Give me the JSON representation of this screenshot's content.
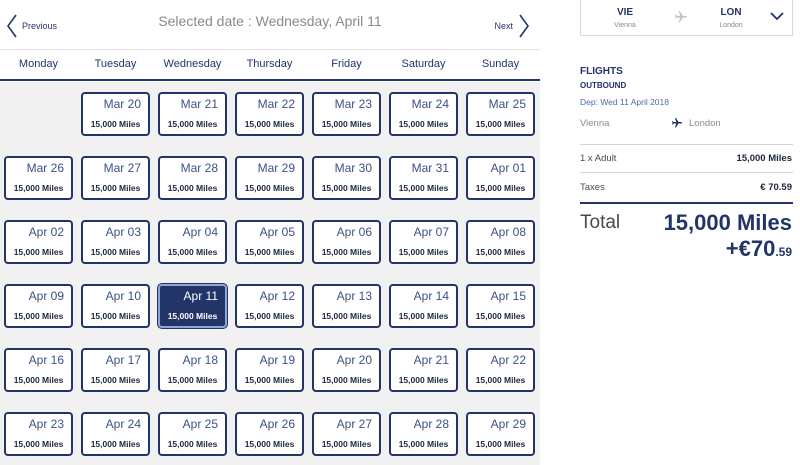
{
  "calendar": {
    "prev_label": "Previous",
    "next_label": "Next",
    "selected_date_text": "Selected date : Wednesday, April 11",
    "weekdays": [
      "Monday",
      "Tuesday",
      "Wednesday",
      "Thursday",
      "Friday",
      "Saturday",
      "Sunday"
    ],
    "selected_date": "Apr 11",
    "rows": [
      [
        null,
        {
          "date": "Mar 20",
          "miles": "15,000 Miles"
        },
        {
          "date": "Mar 21",
          "miles": "15,000 Miles"
        },
        {
          "date": "Mar 22",
          "miles": "15,000 Miles"
        },
        {
          "date": "Mar 23",
          "miles": "15,000 Miles"
        },
        {
          "date": "Mar 24",
          "miles": "15,000 Miles"
        },
        {
          "date": "Mar 25",
          "miles": "15,000 Miles"
        }
      ],
      [
        {
          "date": "Mar 26",
          "miles": "15,000 Miles"
        },
        {
          "date": "Mar 27",
          "miles": "15,000 Miles"
        },
        {
          "date": "Mar 28",
          "miles": "15,000 Miles"
        },
        {
          "date": "Mar 29",
          "miles": "15,000 Miles"
        },
        {
          "date": "Mar 30",
          "miles": "15,000 Miles"
        },
        {
          "date": "Mar 31",
          "miles": "15,000 Miles"
        },
        {
          "date": "Apr 01",
          "miles": "15,000 Miles"
        }
      ],
      [
        {
          "date": "Apr 02",
          "miles": "15,000 Miles"
        },
        {
          "date": "Apr 03",
          "miles": "15,000 Miles"
        },
        {
          "date": "Apr 04",
          "miles": "15,000 Miles"
        },
        {
          "date": "Apr 05",
          "miles": "15,000 Miles"
        },
        {
          "date": "Apr 06",
          "miles": "15,000 Miles"
        },
        {
          "date": "Apr 07",
          "miles": "15,000 Miles"
        },
        {
          "date": "Apr 08",
          "miles": "15,000 Miles"
        }
      ],
      [
        {
          "date": "Apr 09",
          "miles": "15,000 Miles"
        },
        {
          "date": "Apr 10",
          "miles": "15,000 Miles"
        },
        {
          "date": "Apr 11",
          "miles": "15,000 Miles"
        },
        {
          "date": "Apr 12",
          "miles": "15,000 Miles"
        },
        {
          "date": "Apr 13",
          "miles": "15,000 Miles"
        },
        {
          "date": "Apr 14",
          "miles": "15,000 Miles"
        },
        {
          "date": "Apr 15",
          "miles": "15,000 Miles"
        }
      ],
      [
        {
          "date": "Apr 16",
          "miles": "15,000 Miles"
        },
        {
          "date": "Apr 17",
          "miles": "15,000 Miles"
        },
        {
          "date": "Apr 18",
          "miles": "15,000 Miles"
        },
        {
          "date": "Apr 19",
          "miles": "15,000 Miles"
        },
        {
          "date": "Apr 20",
          "miles": "15,000 Miles"
        },
        {
          "date": "Apr 21",
          "miles": "15,000 Miles"
        },
        {
          "date": "Apr 22",
          "miles": "15,000 Miles"
        }
      ],
      [
        {
          "date": "Apr 23",
          "miles": "15,000 Miles"
        },
        {
          "date": "Apr 24",
          "miles": "15,000 Miles"
        },
        {
          "date": "Apr 25",
          "miles": "15,000 Miles"
        },
        {
          "date": "Apr 26",
          "miles": "15,000 Miles"
        },
        {
          "date": "Apr 27",
          "miles": "15,000 Miles"
        },
        {
          "date": "Apr 28",
          "miles": "15,000 Miles"
        },
        {
          "date": "Apr 29",
          "miles": "15,000 Miles"
        }
      ]
    ]
  },
  "summary": {
    "route": {
      "from_code": "VIE",
      "from_city": "Vienna",
      "to_code": "LON",
      "to_city": "London",
      "plane_icon": "plane-icon",
      "toggle_icon": "chevron-down-icon"
    },
    "flights_title": "FLIGHTS",
    "outbound_label": "OUTBOUND",
    "departure": "Dep: Wed 11 April 2018",
    "leg_from": "Vienna",
    "leg_to": "London",
    "adult_label": "1 x Adult",
    "adult_value": "15,000 Miles",
    "taxes_label": "Taxes",
    "taxes_value": "€ 70.59",
    "total_label": "Total",
    "total_miles": "15,000 Miles",
    "total_money_main": "+€70",
    "total_money_cents": ".59"
  },
  "colors": {
    "brand_navy": "#233469",
    "grid_background": "#f1f1f1",
    "muted_text": "#8a8a8a"
  }
}
